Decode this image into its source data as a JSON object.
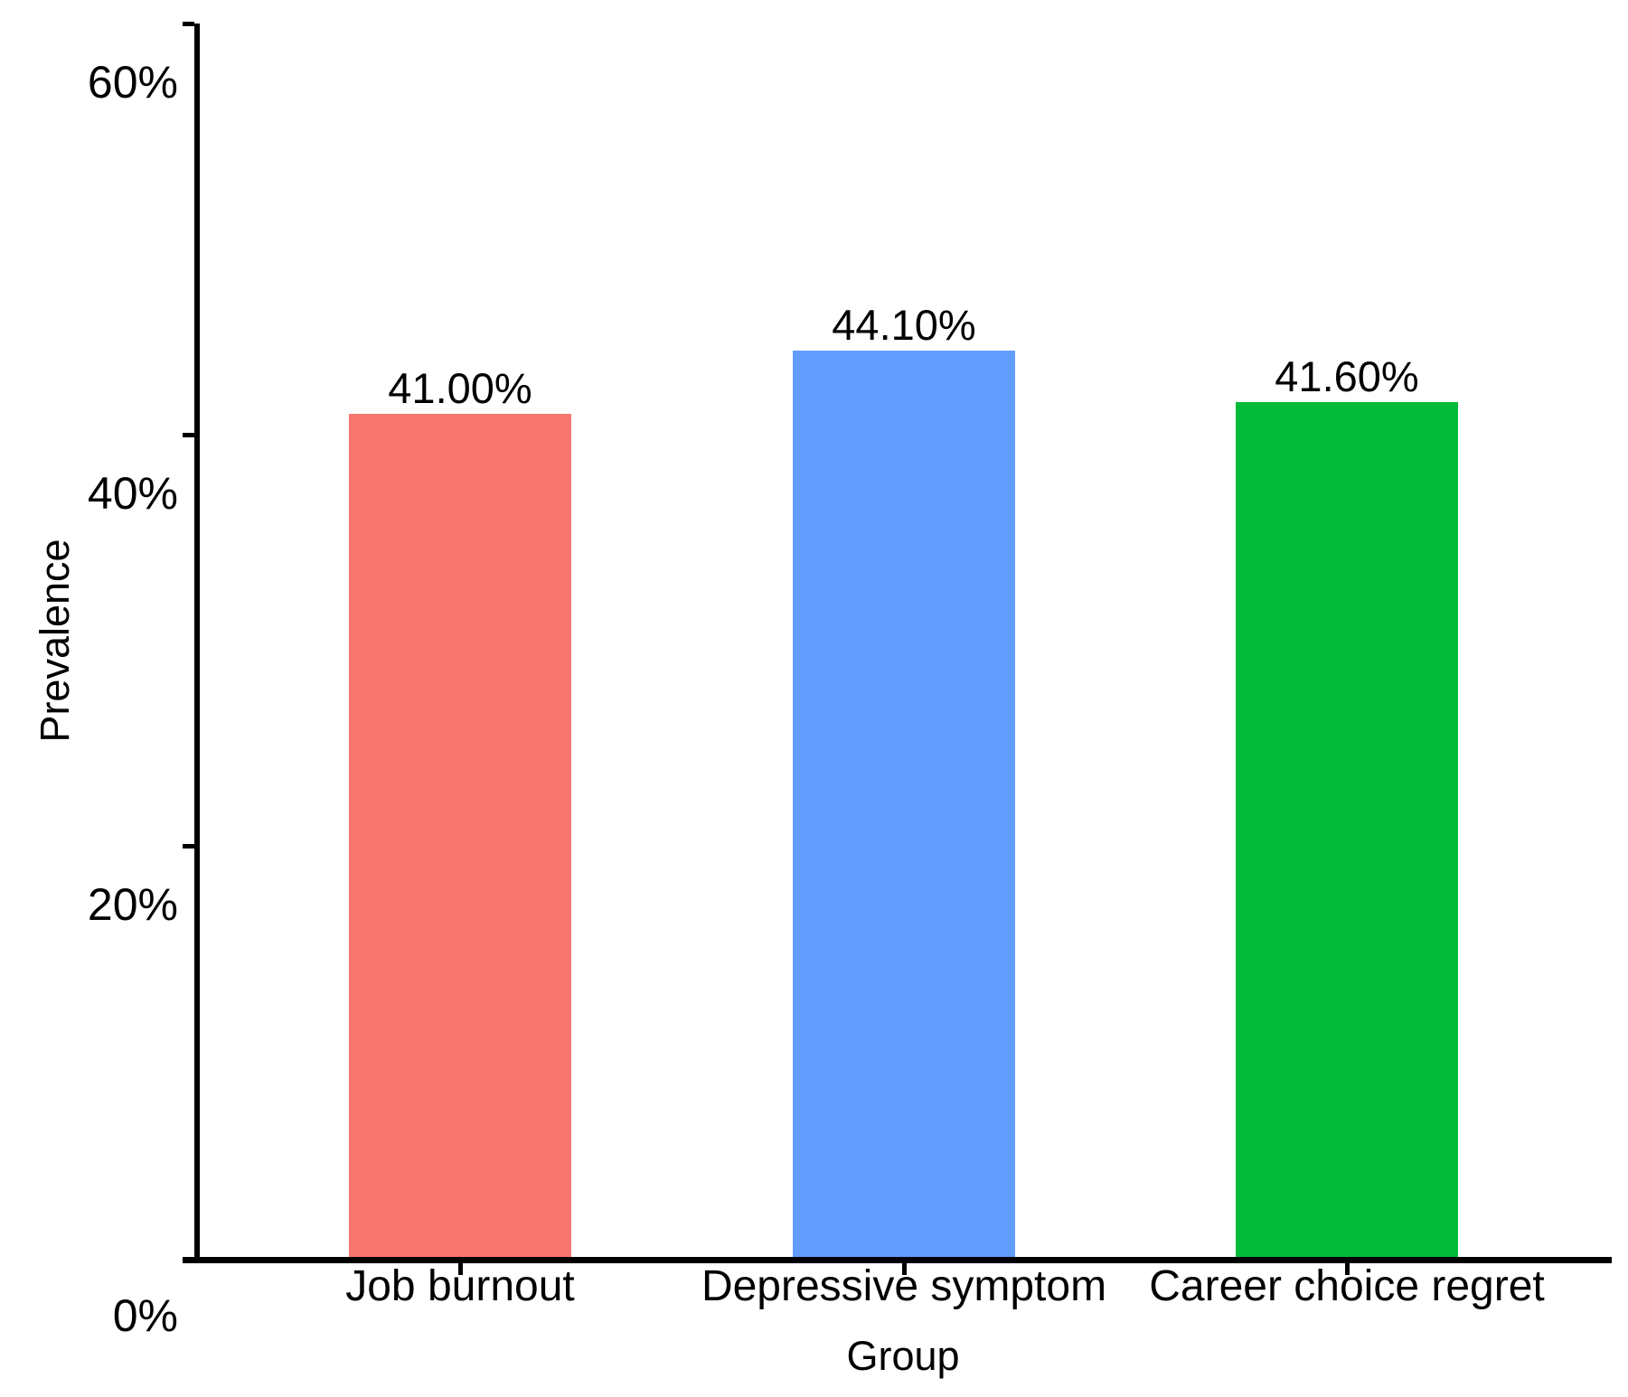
{
  "chart_data": {
    "type": "bar",
    "title": "",
    "xlabel": "Group",
    "ylabel": "Prevalence",
    "categories": [
      "Job burnout",
      "Depressive symptom",
      "Career choice regret"
    ],
    "series": [
      {
        "name": "Prevalence",
        "values": [
          41.0,
          44.1,
          41.6
        ]
      }
    ],
    "value_labels": [
      "41.00%",
      "44.10%",
      "41.60%"
    ],
    "bar_colors": [
      "#F8766D",
      "#619CFF",
      "#00BA38"
    ],
    "text_color": "#000000",
    "axis_color": "#000000",
    "background_color": "#FFFFFF",
    "ylim": [
      0,
      60
    ],
    "y_ticks": [
      0,
      20,
      40,
      60
    ],
    "y_tick_labels": [
      "0%",
      "20%",
      "40%",
      "60%"
    ],
    "grid": "off",
    "legend": "none"
  }
}
